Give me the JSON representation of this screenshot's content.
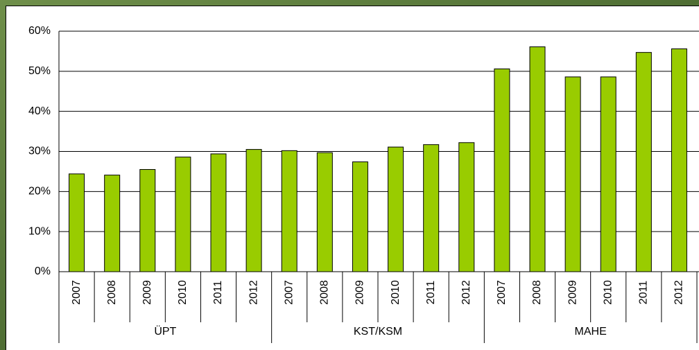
{
  "chart_data": {
    "type": "bar",
    "color": "#99cc00",
    "groups": [
      {
        "name": "ÜPT",
        "categories": [
          "2007",
          "2008",
          "2009",
          "2010",
          "2011",
          "2012"
        ],
        "values": [
          24.4,
          24.1,
          25.5,
          28.6,
          29.4,
          30.5
        ]
      },
      {
        "name": "KST/KSM",
        "categories": [
          "2007",
          "2008",
          "2009",
          "2010",
          "2011",
          "2012"
        ],
        "values": [
          30.2,
          29.7,
          27.4,
          31.1,
          31.7,
          32.2
        ]
      },
      {
        "name": "MAHE",
        "categories": [
          "2007",
          "2008",
          "2009",
          "2010",
          "2011",
          "2012"
        ],
        "values": [
          50.6,
          56.1,
          48.6,
          48.6,
          54.7,
          55.6
        ]
      }
    ],
    "ylim": [
      0,
      60
    ],
    "yticks": [
      {
        "value": 0,
        "label": "0%"
      },
      {
        "value": 10,
        "label": "10%"
      },
      {
        "value": 20,
        "label": "20%"
      },
      {
        "value": 30,
        "label": "30%"
      },
      {
        "value": 40,
        "label": "40%"
      },
      {
        "value": 50,
        "label": "50%"
      },
      {
        "value": 60,
        "label": "60%"
      }
    ],
    "grid": true
  }
}
